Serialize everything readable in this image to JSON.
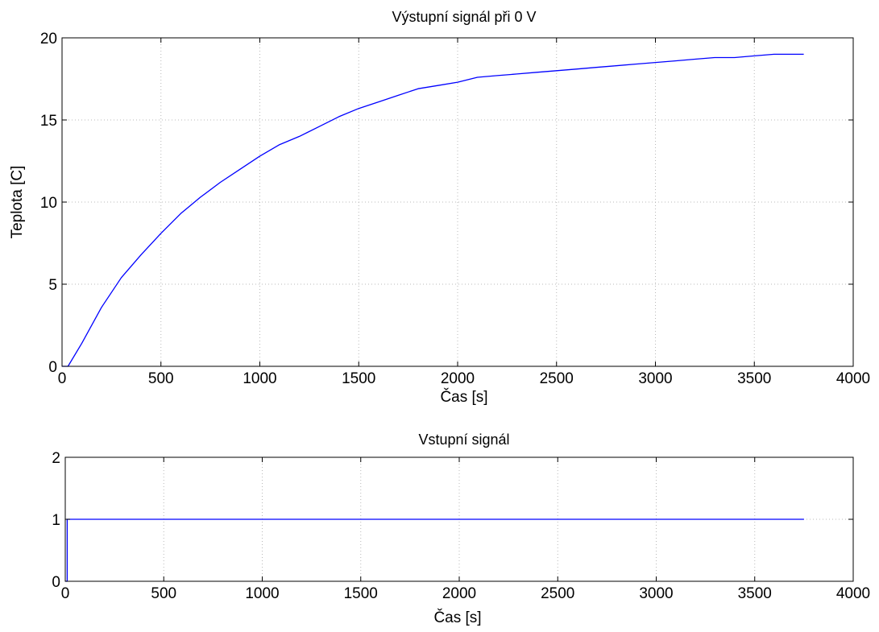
{
  "chart_data": [
    {
      "type": "line",
      "title": "Výstupní signál při 0 V",
      "xlabel": "Čas [s]",
      "ylabel": "Teplota [C]",
      "xlim": [
        0,
        4000
      ],
      "ylim": [
        0,
        20
      ],
      "xticks": [
        0,
        500,
        1000,
        1500,
        2000,
        2500,
        3000,
        3500,
        4000
      ],
      "yticks": [
        0,
        5,
        10,
        15,
        20
      ],
      "grid": true,
      "series": [
        {
          "color": "#0000ff",
          "x": [
            0,
            30,
            100,
            200,
            300,
            400,
            500,
            600,
            700,
            800,
            900,
            1000,
            1100,
            1200,
            1300,
            1400,
            1500,
            1600,
            1700,
            1800,
            1900,
            2000,
            2100,
            2200,
            2300,
            2400,
            2500,
            2600,
            2700,
            2800,
            2900,
            3000,
            3100,
            3200,
            3300,
            3400,
            3500,
            3600,
            3700,
            3750
          ],
          "y": [
            0,
            0,
            1.4,
            3.6,
            5.4,
            6.8,
            8.1,
            9.3,
            10.3,
            11.2,
            12.0,
            12.8,
            13.5,
            14.0,
            14.6,
            15.2,
            15.7,
            16.1,
            16.5,
            16.9,
            17.1,
            17.3,
            17.6,
            17.7,
            17.8,
            17.9,
            18.0,
            18.1,
            18.2,
            18.3,
            18.4,
            18.5,
            18.6,
            18.7,
            18.8,
            18.8,
            18.9,
            19.0,
            19.0,
            19.0
          ]
        }
      ]
    },
    {
      "type": "line",
      "title": "Vstupní signál",
      "xlabel": "Čas [s]",
      "ylabel": "",
      "xlim": [
        0,
        4000
      ],
      "ylim": [
        0,
        2
      ],
      "xticks": [
        0,
        500,
        1000,
        1500,
        2000,
        2500,
        3000,
        3500,
        4000
      ],
      "yticks": [
        0,
        1,
        2
      ],
      "grid": true,
      "series": [
        {
          "color": "#0000ff",
          "x": [
            0,
            10,
            10,
            3750
          ],
          "y": [
            0,
            0,
            1,
            1
          ]
        }
      ]
    }
  ]
}
